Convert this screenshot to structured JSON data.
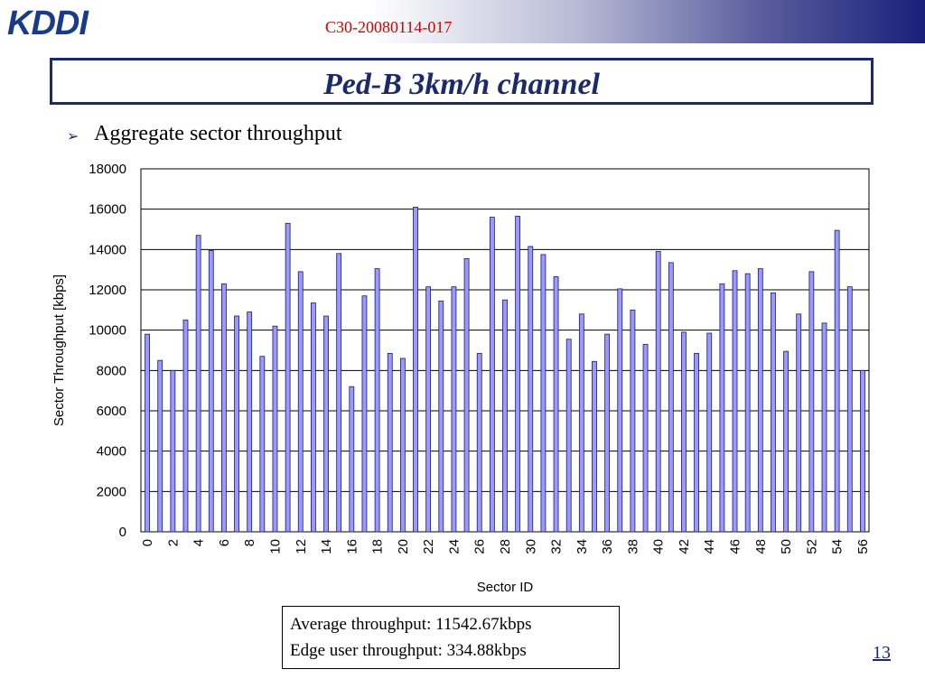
{
  "header": {
    "logo_text": "KDDI",
    "doc_id": "C30-20080114-017"
  },
  "slide": {
    "title": "Ped-B 3km/h channel",
    "bullet": "Aggregate sector throughput",
    "page_number": "13"
  },
  "stats": {
    "line1": "Average throughput: 11542.67kbps",
    "line2": "Edge user throughput: 334.88kbps"
  },
  "colors": {
    "bar_fill": "#9999ff",
    "title_text": "#1b2a6b",
    "doc_id_text": "#d00000",
    "header_gradient_end": "#1b1f7a"
  },
  "chart_data": {
    "type": "bar",
    "xlabel": "Sector ID",
    "ylabel": "Sector Throughput [kbps]",
    "ylim": [
      0,
      18000
    ],
    "yticks": [
      0,
      2000,
      4000,
      6000,
      8000,
      10000,
      12000,
      14000,
      16000,
      18000
    ],
    "grid": true,
    "legend": "none",
    "categories": [
      "0",
      "1",
      "2",
      "3",
      "4",
      "5",
      "6",
      "7",
      "8",
      "9",
      "10",
      "11",
      "12",
      "13",
      "14",
      "15",
      "16",
      "17",
      "18",
      "19",
      "20",
      "21",
      "22",
      "23",
      "24",
      "25",
      "26",
      "27",
      "28",
      "29",
      "30",
      "31",
      "32",
      "33",
      "34",
      "35",
      "36",
      "37",
      "38",
      "39",
      "40",
      "41",
      "42",
      "43",
      "44",
      "45",
      "46",
      "47",
      "48",
      "49",
      "50",
      "51",
      "52",
      "53",
      "54",
      "55",
      "56"
    ],
    "xtick_labels": [
      "0",
      "2",
      "4",
      "6",
      "8",
      "10",
      "12",
      "14",
      "16",
      "18",
      "20",
      "22",
      "24",
      "26",
      "28",
      "30",
      "32",
      "34",
      "36",
      "38",
      "40",
      "42",
      "44",
      "46",
      "48",
      "50",
      "52",
      "54",
      "56"
    ],
    "values": [
      9800,
      8500,
      8000,
      10500,
      14700,
      13950,
      12300,
      10700,
      10900,
      8700,
      10200,
      15300,
      12900,
      11350,
      10700,
      13800,
      7200,
      11700,
      13050,
      8850,
      8600,
      16100,
      12150,
      11450,
      12150,
      13550,
      8850,
      15600,
      11500,
      15650,
      14150,
      13750,
      12650,
      9550,
      10800,
      8450,
      9800,
      12050,
      11000,
      9300,
      13900,
      13350,
      9900,
      8850,
      9850,
      12300,
      12950,
      12800,
      13050,
      11850,
      8950,
      10800,
      12900,
      10350,
      14950,
      12150,
      8000
    ]
  }
}
